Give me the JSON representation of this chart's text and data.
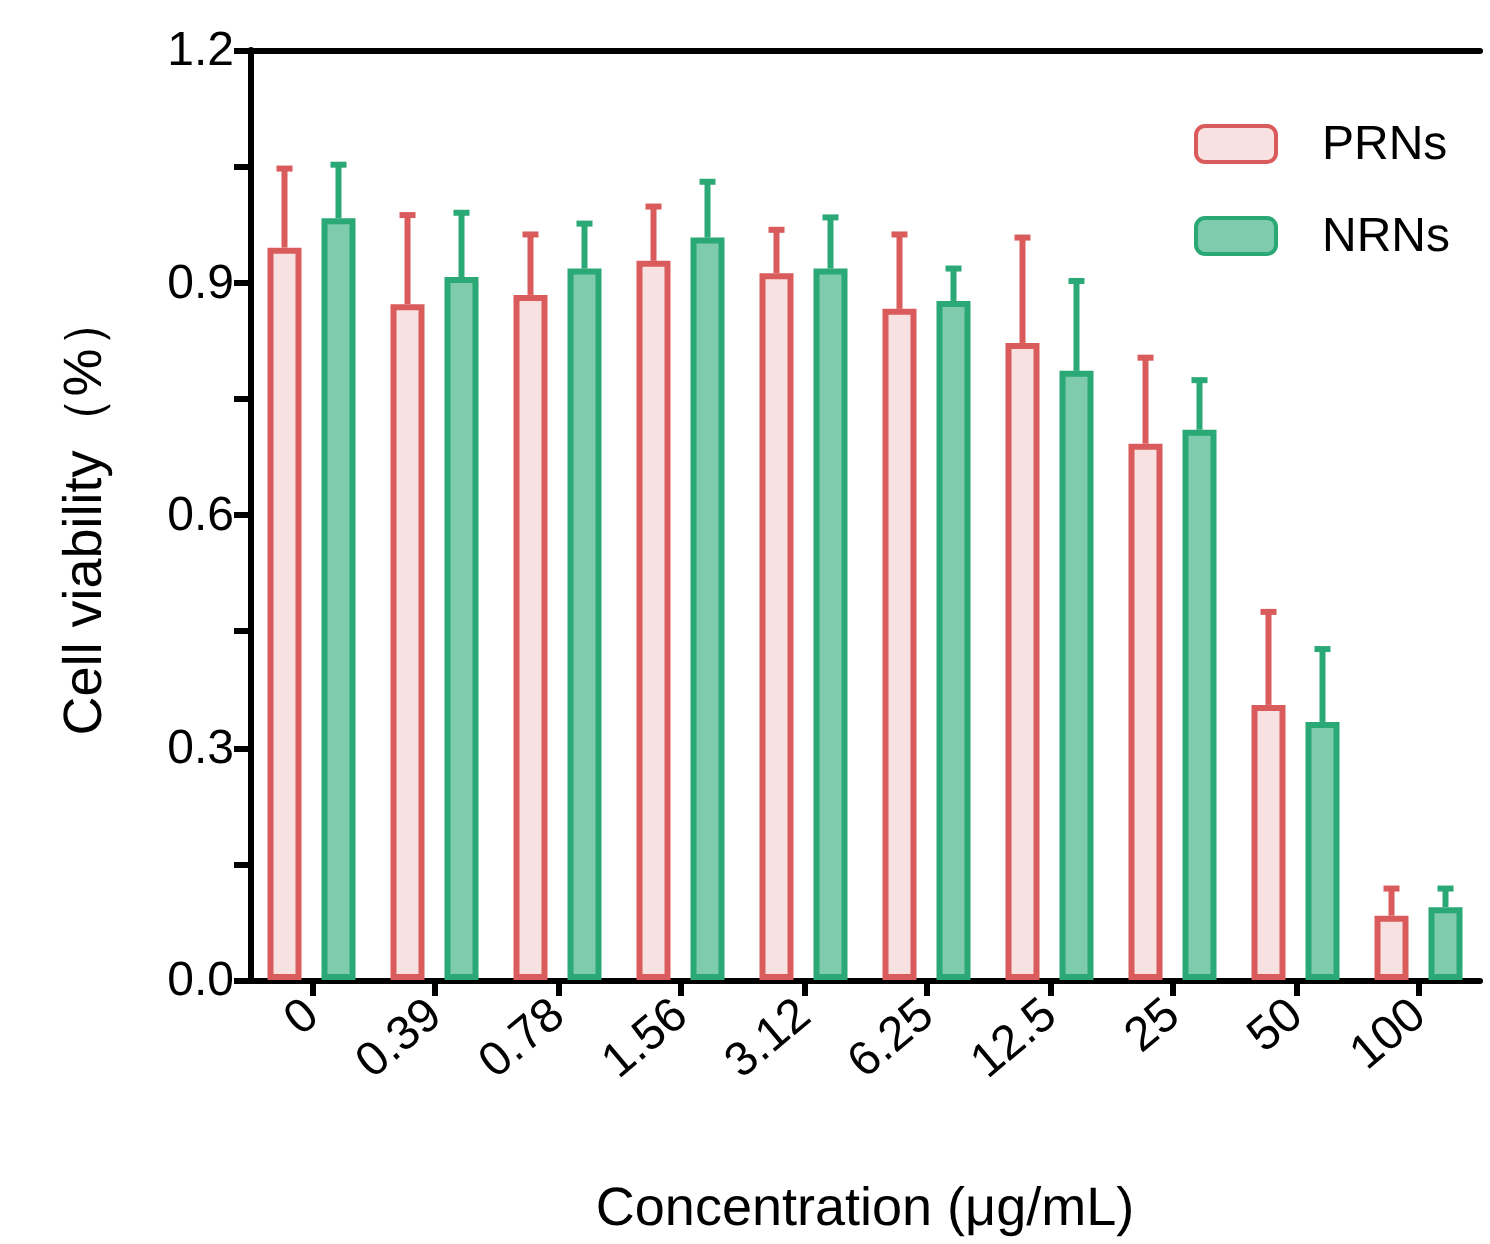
{
  "chart_data": {
    "type": "bar",
    "xlabel": "Concentration (μg/mL)",
    "ylabel": "Cell viability（%）",
    "categories": [
      "0",
      "0.39",
      "0.78",
      "1.56",
      "3.12",
      "6.25",
      "12.5",
      "25",
      "50",
      "100"
    ],
    "series": [
      {
        "name": "PRNs",
        "color": "#d95b5b",
        "values": [
          0.945,
          0.872,
          0.884,
          0.928,
          0.912,
          0.866,
          0.822,
          0.692,
          0.355,
          0.083
        ],
        "errors": [
          [
            0.945,
            1.047
          ],
          [
            0.872,
            0.987
          ],
          [
            0.884,
            0.962
          ],
          [
            0.928,
            0.998
          ],
          [
            0.912,
            0.968
          ],
          [
            0.866,
            0.962
          ],
          [
            0.822,
            0.958
          ],
          [
            0.692,
            0.803
          ],
          [
            0.355,
            0.475
          ],
          [
            0.083,
            0.118
          ]
        ]
      },
      {
        "name": "NRNs",
        "color": "#2aa876",
        "values": [
          0.983,
          0.907,
          0.918,
          0.958,
          0.918,
          0.876,
          0.786,
          0.71,
          0.333,
          0.094
        ],
        "errors": [
          [
            0.983,
            1.052
          ],
          [
            0.907,
            0.99
          ],
          [
            0.918,
            0.976
          ],
          [
            0.958,
            1.03
          ],
          [
            0.918,
            0.984
          ],
          [
            0.876,
            0.918
          ],
          [
            0.786,
            0.902
          ],
          [
            0.71,
            0.774
          ],
          [
            0.333,
            0.427
          ],
          [
            0.094,
            0.118
          ]
        ]
      }
    ],
    "ylim": [
      0,
      1.2
    ],
    "yticks": [
      {
        "value": 0,
        "label": "0.0"
      },
      {
        "value": 0.15,
        "label": null
      },
      0.3,
      {
        "value": 0.45,
        "label": null
      },
      0.6,
      {
        "value": 0.75,
        "label": null
      },
      0.9,
      {
        "value": 1.05,
        "label": null
      },
      1.2
    ],
    "grid": false,
    "legend": "top right"
  }
}
